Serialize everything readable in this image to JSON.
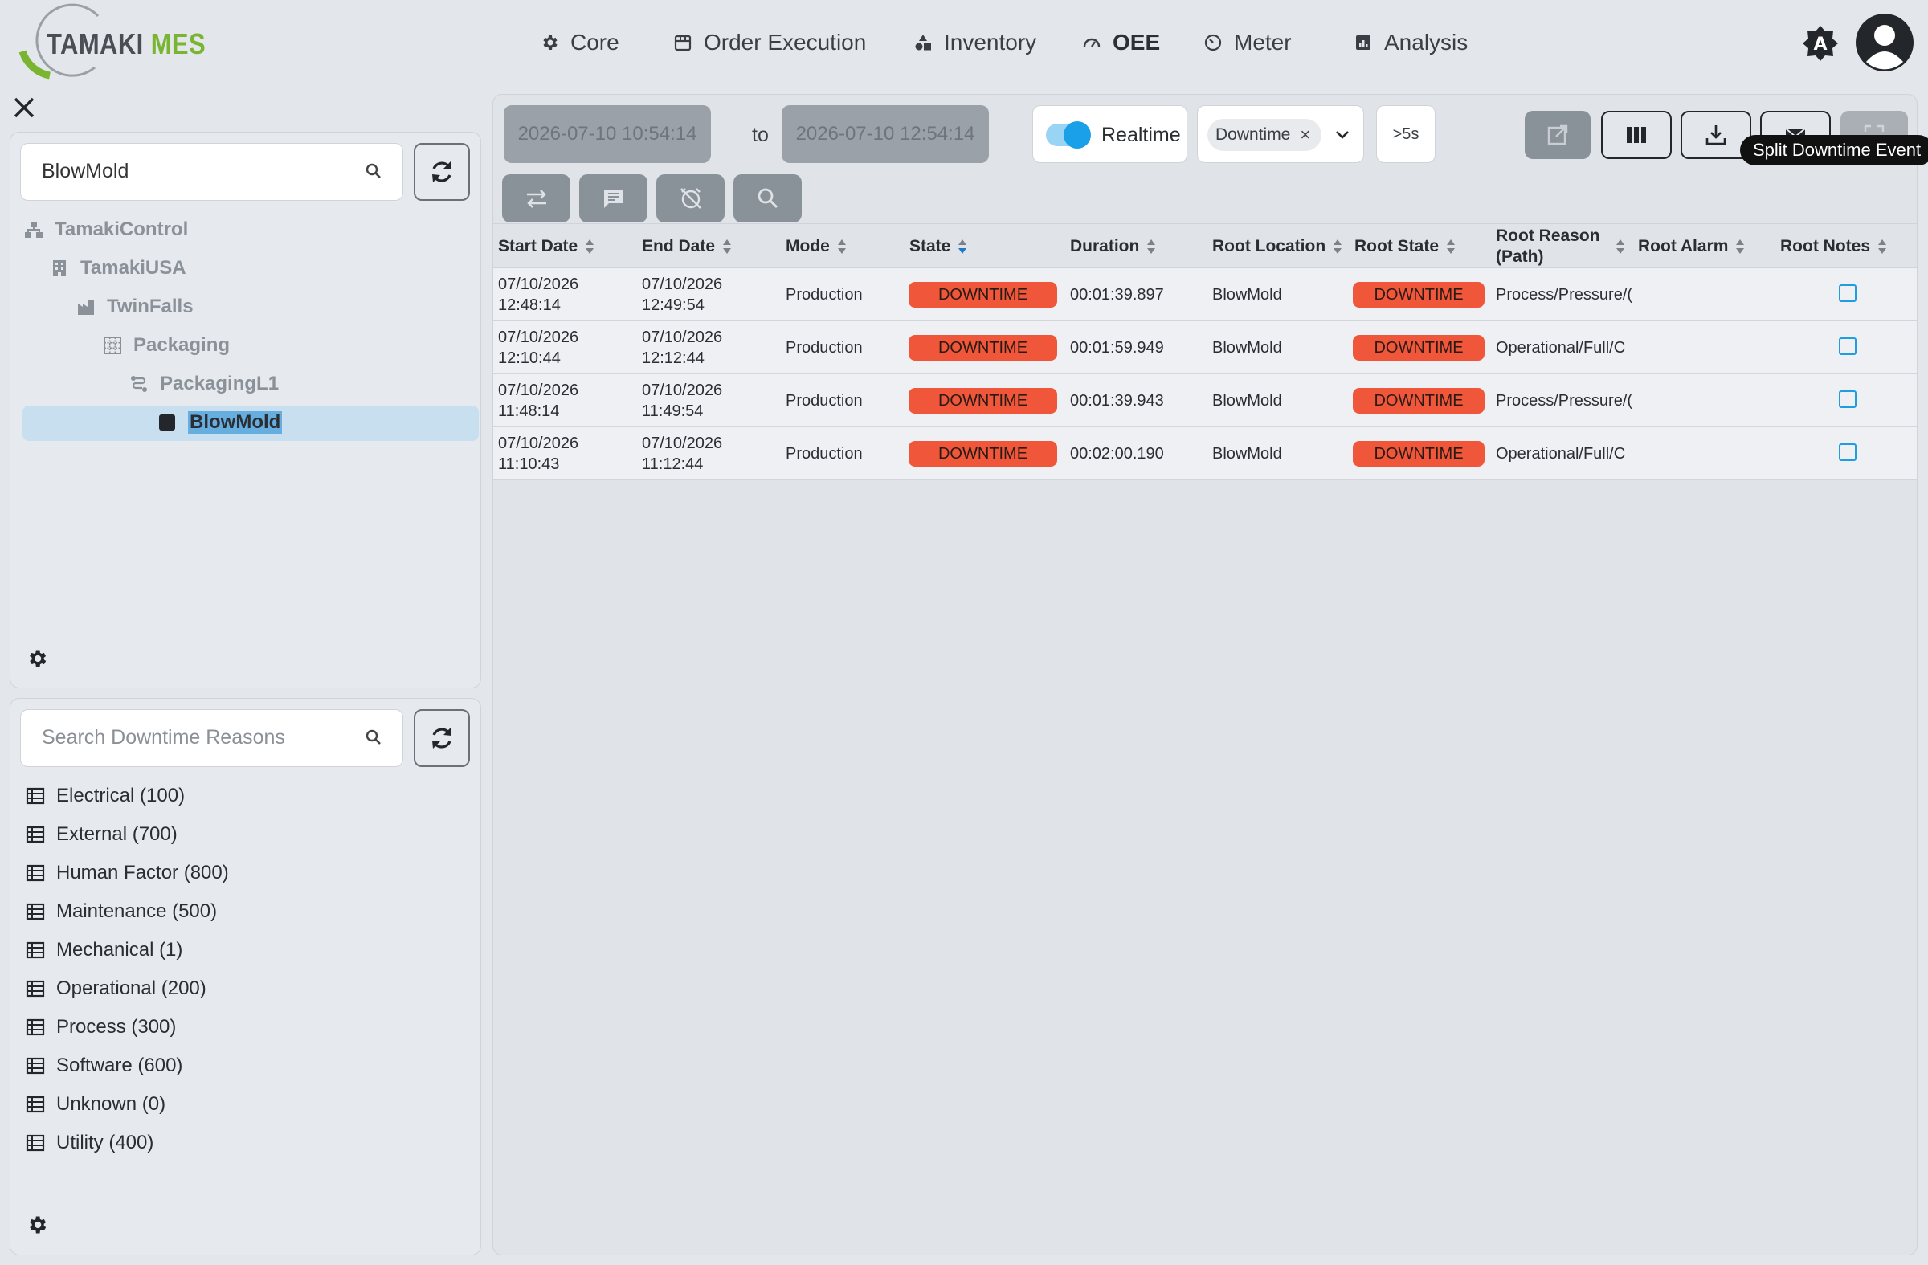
{
  "app": {
    "logo_part1": "TAMAKI",
    "logo_part2": "MES"
  },
  "nav": [
    {
      "label": "Core",
      "icon": "gear-icon"
    },
    {
      "label": "Order Execution",
      "icon": "calendar-icon"
    },
    {
      "label": "Inventory",
      "icon": "shapes-icon"
    },
    {
      "label": "OEE",
      "icon": "gauge-icon",
      "active": true
    },
    {
      "label": "Meter",
      "icon": "meter-icon"
    },
    {
      "label": "Analysis",
      "icon": "chart-icon"
    }
  ],
  "header": {
    "theme_icon": "theme-icon",
    "avatar_icon": "user-circle-icon"
  },
  "tree_panel": {
    "search_value": "BlowMold",
    "items": [
      {
        "label": "TamakiControl",
        "icon": "hierarchy-icon"
      },
      {
        "label": "TamakiUSA",
        "icon": "building-icon"
      },
      {
        "label": "TwinFalls",
        "icon": "factory-icon"
      },
      {
        "label": "Packaging",
        "icon": "grid-icon"
      },
      {
        "label": "PackagingL1",
        "icon": "line-icon"
      },
      {
        "label": "BlowMold",
        "icon": "square-icon",
        "selected": true
      }
    ]
  },
  "reasons_panel": {
    "search_placeholder": "Search Downtime Reasons",
    "items": [
      "Electrical (100)",
      "External (700)",
      "Human Factor (800)",
      "Maintenance (500)",
      "Mechanical (1)",
      "Operational (200)",
      "Process (300)",
      "Software (600)",
      "Unknown (0)",
      "Utility (400)"
    ]
  },
  "toolbar": {
    "start_date": "2026-07-10 10:54:14",
    "to_label": "to",
    "end_date": "2026-07-10 12:54:14",
    "realtime_label": "Realtime",
    "realtime_on": true,
    "mode_chip": "Downtime",
    "duration_filter": ">5s",
    "tooltip": "Split Downtime Event"
  },
  "table": {
    "columns": [
      "Start Date",
      "End Date",
      "Mode",
      "State",
      "Duration",
      "Root Location",
      "Root State",
      "Root Reason (Path)",
      "Root Alarm",
      "Root Notes"
    ],
    "rows": [
      {
        "start_date": "07/10/2026",
        "start_time": "12:48:14",
        "end_date": "07/10/2026",
        "end_time": "12:49:54",
        "mode": "Production",
        "state": "DOWNTIME",
        "duration": "00:01:39.897",
        "root_location": "BlowMold",
        "root_state": "DOWNTIME",
        "root_reason": "Process/Pressure/(",
        "root_alarm": ""
      },
      {
        "start_date": "07/10/2026",
        "start_time": "12:10:44",
        "end_date": "07/10/2026",
        "end_time": "12:12:44",
        "mode": "Production",
        "state": "DOWNTIME",
        "duration": "00:01:59.949",
        "root_location": "BlowMold",
        "root_state": "DOWNTIME",
        "root_reason": "Operational/Full/C",
        "root_alarm": ""
      },
      {
        "start_date": "07/10/2026",
        "start_time": "11:48:14",
        "end_date": "07/10/2026",
        "end_time": "11:49:54",
        "mode": "Production",
        "state": "DOWNTIME",
        "duration": "00:01:39.943",
        "root_location": "BlowMold",
        "root_state": "DOWNTIME",
        "root_reason": "Process/Pressure/(",
        "root_alarm": ""
      },
      {
        "start_date": "07/10/2026",
        "start_time": "11:10:43",
        "end_date": "07/10/2026",
        "end_time": "11:12:44",
        "mode": "Production",
        "state": "DOWNTIME",
        "duration": "00:02:00.190",
        "root_location": "BlowMold",
        "root_state": "DOWNTIME",
        "root_reason": "Operational/Full/C",
        "root_alarm": ""
      }
    ]
  },
  "colors": {
    "downtime": "#f0573a",
    "accent": "#1aa0e8",
    "brand_green": "#7ab532"
  }
}
